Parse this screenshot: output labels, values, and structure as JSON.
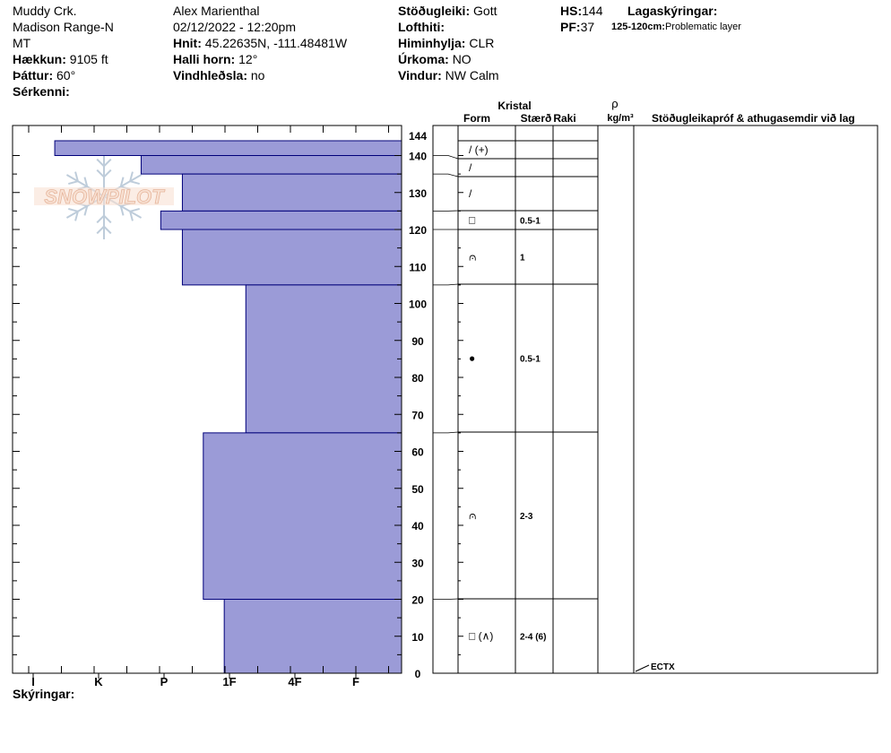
{
  "header": {
    "location": "Muddy Crk.",
    "range": "Madison Range-N",
    "state": "MT",
    "elevation_label": "Hækkun:",
    "elevation": "9105 ft",
    "aspect_label": "Þáttur:",
    "aspect": "60°",
    "features_label": "Sérkenni:",
    "observer": "Alex Marienthal",
    "datetime": "02/12/2022 - 12:20pm",
    "coords_label": "Hnit:",
    "coords": "45.22635N, -111.48481W",
    "slope_label": "Halli horn:",
    "slope": "12°",
    "wind_loading_label": "Vindhleðsla:",
    "wind_loading": "no",
    "stability_label": "Stöðugleiki:",
    "stability": "Gott",
    "air_temp_label": "Lofthiti:",
    "sky_label": "Himinhylja:",
    "sky": "CLR",
    "precip_label": "Úrkoma:",
    "precip": "NO",
    "wind_label": "Vindur:",
    "wind": "NW Calm",
    "hs_label": "HS:",
    "hs": "144",
    "pf_label": "PF:",
    "pf": "37",
    "layer_notes_label": "Lagaskýringar:",
    "layer_note_range": "125-120cm:",
    "layer_note_text": "Problematic layer"
  },
  "columns": {
    "crystal": "Kristal",
    "form": "Form",
    "size": "Stærð",
    "moisture": "Raki",
    "rho": "ρ",
    "density_unit": "kg/m³",
    "tests": "Stöðugleikapróf & athugasemdir við lag"
  },
  "footer": {
    "notes_label": "Skýringar:"
  },
  "logo_text": "SNOWPILOT",
  "colors": {
    "hardness_fill": "#9b9bd7",
    "hardness_stroke": "#00007a"
  },
  "chart_data": {
    "type": "bar",
    "orientation": "horizontal",
    "y_axis_range": [
      0,
      144
    ],
    "y_ticks": [
      0,
      10,
      20,
      30,
      40,
      50,
      60,
      70,
      80,
      90,
      100,
      110,
      120,
      130,
      140,
      144
    ],
    "hardness_scale": [
      "I",
      "K",
      "P",
      "1F",
      "4F",
      "F"
    ],
    "layers": [
      {
        "top": 144,
        "bottom": 140,
        "hardness": 0.33
      },
      {
        "top": 140,
        "bottom": 135,
        "hardness": 1.65
      },
      {
        "top": 135,
        "bottom": 125,
        "hardness": 2.28
      },
      {
        "top": 125,
        "bottom": 120,
        "hardness": 1.95
      },
      {
        "top": 120,
        "bottom": 105,
        "hardness": 2.28
      },
      {
        "top": 105,
        "bottom": 65,
        "hardness": 3.25
      },
      {
        "top": 65,
        "bottom": 20,
        "hardness": 2.6
      },
      {
        "top": 20,
        "bottom": 0,
        "hardness": 2.92
      }
    ],
    "grain_rows": [
      {
        "top": 144,
        "bottom": 140,
        "form": "/ (+)",
        "size": ""
      },
      {
        "top": 140,
        "bottom": 135,
        "form": "/",
        "size": ""
      },
      {
        "top": 135,
        "bottom": 125,
        "form": "/",
        "size": ""
      },
      {
        "top": 125,
        "bottom": 120,
        "form": "□",
        "size": "0.5-1"
      },
      {
        "top": 120,
        "bottom": 105,
        "form": "⩀",
        "size": "1"
      },
      {
        "top": 105,
        "bottom": 65,
        "form": "●",
        "size": "0.5-1"
      },
      {
        "top": 65,
        "bottom": 20,
        "form": "⩀",
        "size": "2-3"
      },
      {
        "top": 20,
        "bottom": 0,
        "form": "□ (∧)",
        "size": "2-4 (6)"
      }
    ],
    "tests": [
      {
        "depth": 0,
        "label": "ECTX"
      }
    ]
  }
}
